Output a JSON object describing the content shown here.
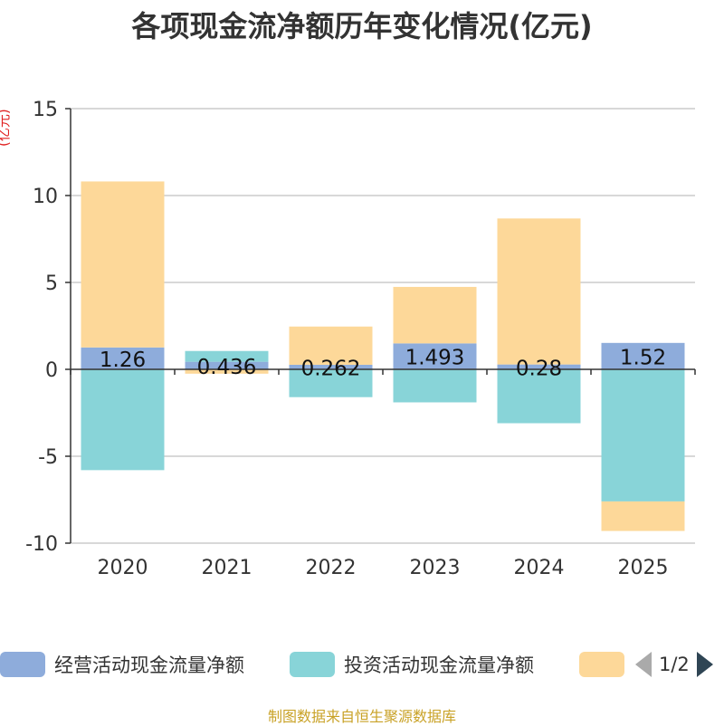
{
  "chart_data": {
    "type": "bar",
    "stacked": true,
    "title": "各项现金流净额历年变化情况(亿元)",
    "ylabel": "(亿元)",
    "ylim": [
      -10,
      15
    ],
    "yticks": [
      15,
      10,
      5,
      0,
      -5,
      -10
    ],
    "categories": [
      "2020",
      "2021",
      "2022",
      "2023",
      "2024",
      "2025"
    ],
    "series": [
      {
        "name": "经营活动现金流量净额",
        "color": "#8eacdb",
        "values": [
          1.26,
          0.436,
          0.262,
          1.493,
          0.28,
          1.52
        ],
        "labels": [
          "1.26",
          "0.436",
          "0.262",
          "1.493",
          "0.28",
          "1.52"
        ]
      },
      {
        "name": "投资活动现金流量净额",
        "color": "#88d4d8",
        "values": [
          -5.8,
          0.62,
          -1.6,
          -1.9,
          -3.1,
          -7.6
        ]
      },
      {
        "name": "",
        "color": "#fdd899",
        "values": [
          9.55,
          -0.25,
          2.2,
          3.25,
          8.4,
          -1.7
        ]
      }
    ],
    "grid": true,
    "legend": "bottom",
    "legend_page": "1/2",
    "source": "制图数据来自恒生聚源数据库"
  }
}
